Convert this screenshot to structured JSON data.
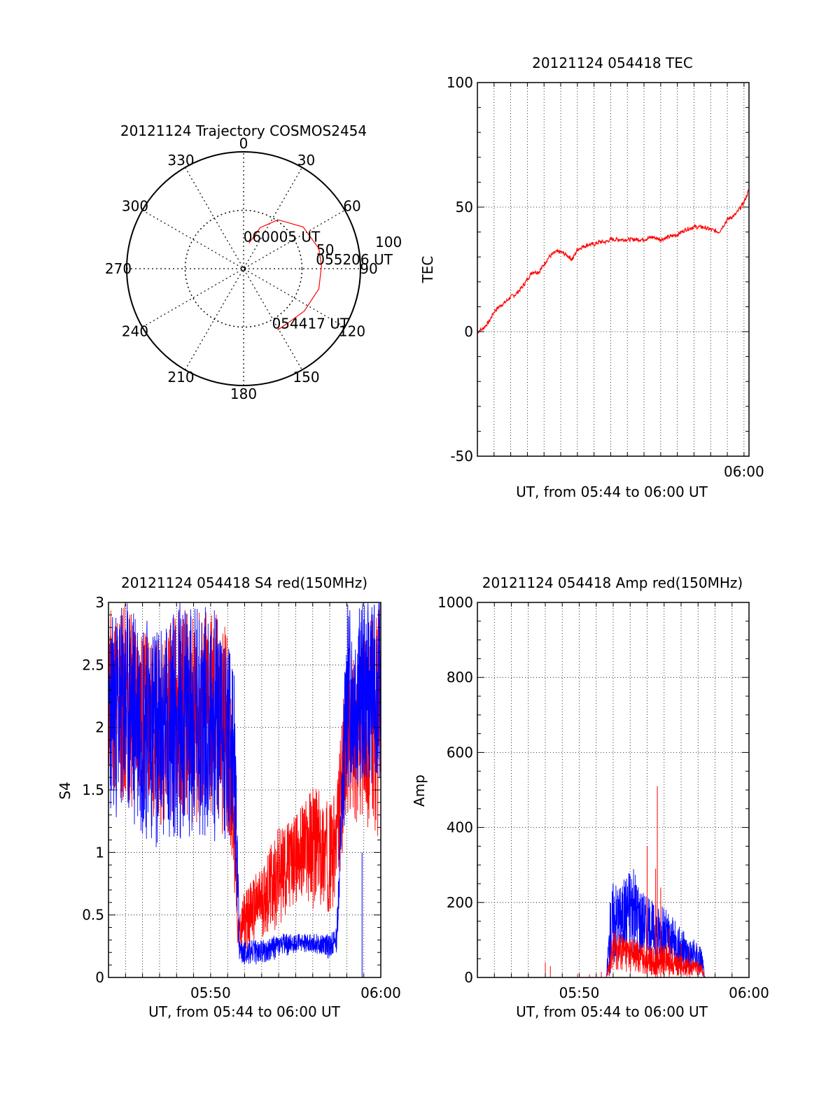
{
  "colors": {
    "red": "#ff0000",
    "blue": "#0000ff",
    "frame": "#000000",
    "grid": "#000000"
  },
  "chart_data": [
    {
      "type": "polar",
      "title": "20121124 Trajectory COSMOS2454",
      "azimuth_labels": [
        "0",
        "30",
        "60",
        "90",
        "120",
        "150",
        "180",
        "210",
        "240",
        "270",
        "300",
        "330"
      ],
      "radial_tick_labels": [
        "50",
        "100"
      ],
      "grid": true,
      "series": [
        {
          "color": "#ff0000",
          "points": [
            {
              "az": 12,
              "el": 70
            },
            {
              "az": 22,
              "el": 56
            },
            {
              "az": 35,
              "el": 44
            },
            {
              "az": 55,
              "el": 34
            },
            {
              "az": 75,
              "el": 30
            },
            {
              "az": 88,
              "el": 30
            },
            {
              "az": 105,
              "el": 30
            },
            {
              "az": 125,
              "el": 33
            },
            {
              "az": 140,
              "el": 36
            },
            {
              "az": 151,
              "el": 36
            }
          ]
        }
      ],
      "annotations": [
        {
          "text": "060005 UT",
          "az": 12,
          "el": 70
        },
        {
          "text": "055206 UT",
          "az": 88,
          "el": 30
        },
        {
          "text": "054417 UT",
          "az": 151,
          "el": 36
        }
      ]
    },
    {
      "type": "line",
      "title": "20121124 054418 TEC",
      "xlabel": "UT, from 05:44 to 06:00 UT",
      "ylabel": "TEC",
      "xlim": [
        0,
        16.3
      ],
      "ylim": [
        -50,
        100
      ],
      "x_tick_labels": [
        {
          "x": 16,
          "label": "06:00"
        }
      ],
      "y_ticks": [
        -50,
        0,
        50,
        100
      ],
      "grid": true,
      "series": [
        {
          "color": "#ff0000",
          "x": [
            0,
            0.3,
            0.7,
            1.0,
            1.3,
            1.7,
            2.0,
            2.3,
            2.7,
            3.0,
            3.3,
            3.7,
            4.0,
            4.3,
            4.7,
            5.0,
            5.3,
            5.7,
            6.0,
            6.3,
            6.7,
            7.0,
            7.3,
            7.7,
            8.0,
            8.5,
            9.0,
            9.5,
            10.0,
            10.5,
            11.0,
            11.5,
            12.0,
            12.5,
            13.0,
            13.5,
            14.0,
            14.5,
            15.0,
            15.5,
            16.0,
            16.3
          ],
          "y": [
            0,
            1,
            4,
            8,
            10,
            12,
            14,
            15,
            18,
            21,
            24,
            24,
            27,
            30,
            32,
            32,
            31,
            29,
            33,
            34,
            35,
            35,
            36,
            36,
            37,
            37,
            37,
            37,
            37,
            38,
            37,
            38,
            39,
            41,
            42,
            42,
            41,
            40,
            45,
            47,
            52,
            57
          ]
        }
      ]
    },
    {
      "type": "line",
      "title": "20121124 054418 S4 red(150MHz)",
      "xlabel": "UT, from 05:44 to 06:00 UT",
      "ylabel": "S4",
      "xlim": [
        0,
        16
      ],
      "ylim": [
        0,
        3
      ],
      "x_tick_labels": [
        {
          "x": 6,
          "label": "05:50"
        },
        {
          "x": 16,
          "label": "06:00"
        }
      ],
      "y_ticks": [
        0,
        0.5,
        1,
        1.5,
        2,
        2.5,
        3
      ],
      "y_tick_labels": [
        "0",
        "0.5",
        "1",
        "1.5",
        "2",
        "2.5",
        "3"
      ],
      "grid": true,
      "series": [
        {
          "color": "#ff0000",
          "envelope": {
            "x": [
              0,
              1,
              2,
              3,
              4,
              5,
              6,
              7,
              7.3,
              7.6,
              8,
              9,
              10,
              11,
              12,
              13,
              13.4,
              14,
              15,
              16
            ],
            "low": [
              1.5,
              1.3,
              1.4,
              1.2,
              1.3,
              1.2,
              1.2,
              1.1,
              0.9,
              0.25,
              0.2,
              0.3,
              0.4,
              0.6,
              0.55,
              0.5,
              0.6,
              1.3,
              1.2,
              1.1
            ],
            "high": [
              3,
              3,
              2.8,
              2.7,
              3,
              2.9,
              3,
              2.8,
              2.2,
              0.45,
              0.7,
              0.9,
              1.2,
              1.3,
              1.55,
              1.4,
              1.5,
              2.6,
              2.8,
              3
            ]
          }
        },
        {
          "color": "#0000ff",
          "envelope": {
            "x": [
              0,
              1,
              2,
              3,
              4,
              5,
              6,
              7,
              7.4,
              7.7,
              8,
              9,
              10,
              11,
              12,
              13,
              13.4,
              14,
              15,
              16
            ],
            "low": [
              1.3,
              1.2,
              1.1,
              1.0,
              1.1,
              1.1,
              1.1,
              1.0,
              0.9,
              0.12,
              0.1,
              0.1,
              0.15,
              0.2,
              0.2,
              0.15,
              0.2,
              1.5,
              1.5,
              1.6
            ],
            "high": [
              2.9,
              3,
              3,
              2.8,
              3,
              3,
              3,
              2.8,
              2.4,
              0.3,
              0.3,
              0.3,
              0.35,
              0.35,
              0.35,
              0.35,
              0.4,
              3,
              3,
              3
            ]
          }
        }
      ]
    },
    {
      "type": "line",
      "title": "20121124 054418 Amp red(150MHz)",
      "xlabel": "UT, from 05:44 to 06:00 UT",
      "ylabel": "Amp",
      "xlim": [
        0,
        16
      ],
      "ylim": [
        0,
        1000
      ],
      "x_tick_labels": [
        {
          "x": 6,
          "label": "05:50"
        },
        {
          "x": 16,
          "label": "06:00"
        }
      ],
      "y_ticks": [
        0,
        200,
        400,
        600,
        800,
        1000
      ],
      "grid": true,
      "series": [
        {
          "color": "#0000ff",
          "envelope": {
            "x": [
              0,
              7.6,
              7.8,
              8,
              8.5,
              9,
              9.5,
              10,
              10.5,
              11,
              11.5,
              12,
              12.5,
              13.2,
              13.4,
              16
            ],
            "low": [
              0,
              0,
              0,
              30,
              60,
              70,
              60,
              50,
              40,
              30,
              20,
              15,
              10,
              5,
              0,
              0
            ],
            "high": [
              0,
              0,
              200,
              270,
              250,
              310,
              260,
              220,
              200,
              190,
              160,
              130,
              110,
              90,
              0,
              0
            ]
          }
        },
        {
          "color": "#ff0000",
          "envelope": {
            "x": [
              0,
              7.6,
              7.8,
              8,
              8.5,
              9,
              9.5,
              10,
              10.5,
              11,
              11.5,
              12,
              12.5,
              13.2,
              13.4,
              16
            ],
            "low": [
              0,
              0,
              0,
              10,
              15,
              10,
              8,
              5,
              5,
              5,
              5,
              3,
              2,
              2,
              0,
              0
            ],
            "high": [
              0,
              0,
              80,
              130,
              120,
              110,
              100,
              90,
              80,
              100,
              80,
              60,
              50,
              40,
              0,
              0
            ]
          },
          "spikes": [
            {
              "x": 4.0,
              "y": 40
            },
            {
              "x": 4.3,
              "y": 30
            },
            {
              "x": 5.9,
              "y": 10
            },
            {
              "x": 6.6,
              "y": 8
            },
            {
              "x": 7.3,
              "y": 15
            },
            {
              "x": 10.0,
              "y": 350
            },
            {
              "x": 10.5,
              "y": 290
            },
            {
              "x": 10.6,
              "y": 510
            },
            {
              "x": 10.8,
              "y": 240
            },
            {
              "x": 11.3,
              "y": 130
            },
            {
              "x": 12.0,
              "y": 90
            },
            {
              "x": 12.5,
              "y": 70
            }
          ]
        }
      ]
    }
  ]
}
